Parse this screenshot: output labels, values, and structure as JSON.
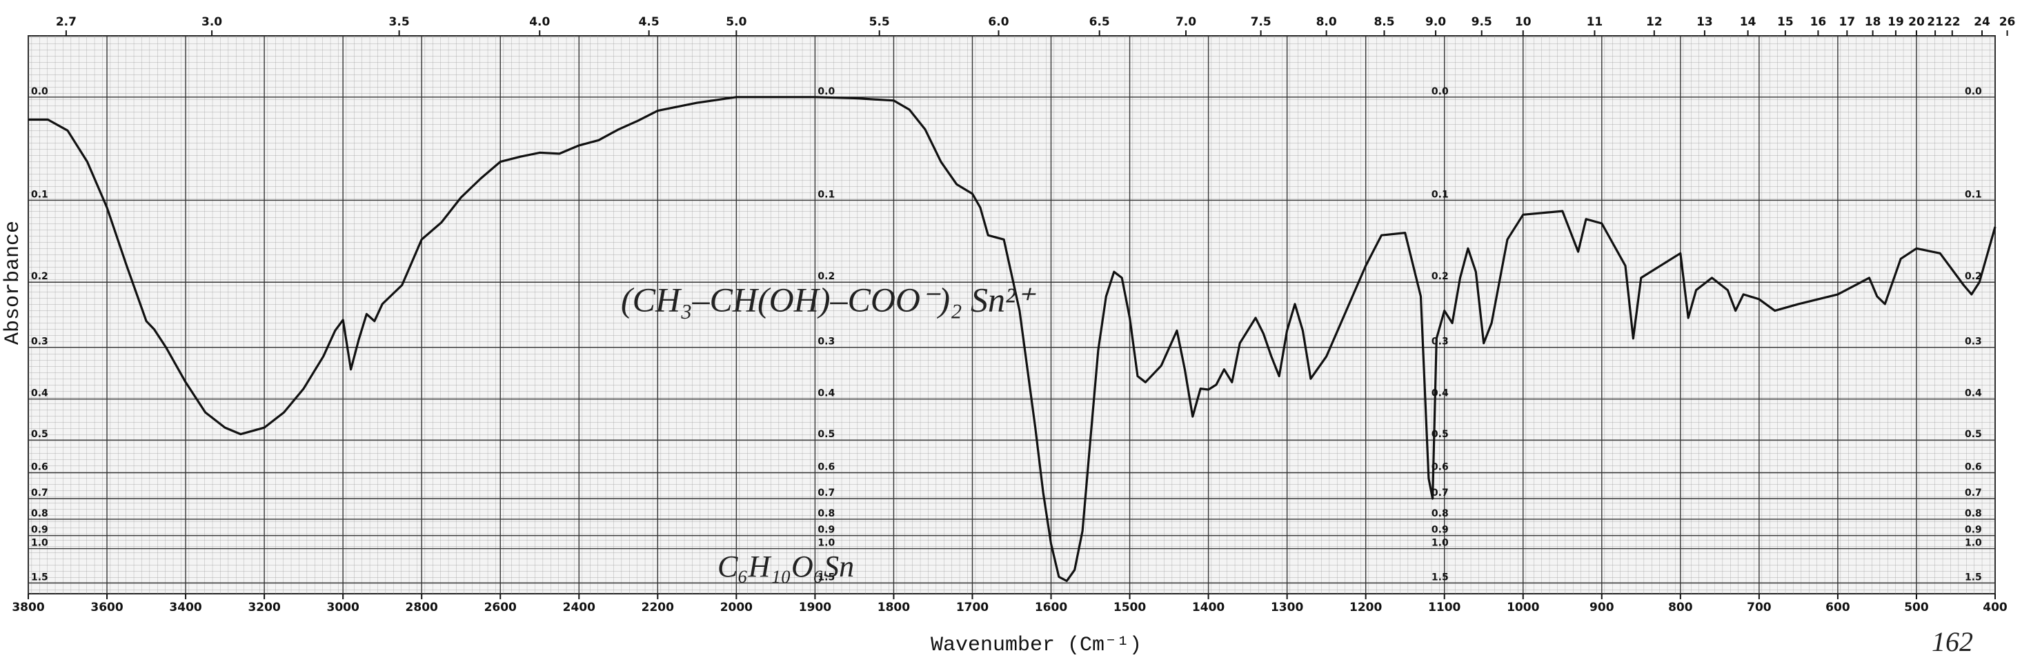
{
  "chart_data": {
    "type": "line",
    "xlabel": "Wavenumber (Cm⁻¹)",
    "ylabel": "Absorbance",
    "x2label": null,
    "annotations": [
      "(CH₃–CH(OH)–COO⁻)₂ Sn²⁺",
      "C₆H₁₀O₆Sn",
      "162"
    ],
    "x": [
      3800,
      3750,
      3700,
      3650,
      3600,
      3550,
      3500,
      3480,
      3450,
      3400,
      3350,
      3300,
      3260,
      3200,
      3150,
      3100,
      3050,
      3020,
      3000,
      2980,
      2960,
      2940,
      2920,
      2900,
      2850,
      2800,
      2750,
      2700,
      2650,
      2600,
      2550,
      2500,
      2450,
      2400,
      2350,
      2300,
      2250,
      2200,
      2100,
      2000,
      1950,
      1900,
      1850,
      1800,
      1780,
      1760,
      1740,
      1720,
      1700,
      1690,
      1680,
      1660,
      1640,
      1620,
      1610,
      1600,
      1590,
      1580,
      1570,
      1560,
      1550,
      1540,
      1530,
      1520,
      1510,
      1500,
      1490,
      1480,
      1460,
      1440,
      1430,
      1420,
      1410,
      1400,
      1390,
      1380,
      1370,
      1360,
      1340,
      1330,
      1320,
      1310,
      1300,
      1290,
      1280,
      1270,
      1250,
      1200,
      1180,
      1150,
      1130,
      1120,
      1115,
      1110,
      1100,
      1090,
      1080,
      1070,
      1060,
      1050,
      1040,
      1020,
      1000,
      950,
      930,
      920,
      900,
      870,
      860,
      850,
      800,
      790,
      780,
      760,
      740,
      730,
      720,
      700,
      680,
      650,
      600,
      560,
      550,
      540,
      520,
      500,
      470,
      440,
      430,
      420,
      400
    ],
    "values": [
      0.02,
      0.02,
      0.03,
      0.06,
      0.108,
      0.178,
      0.257,
      0.27,
      0.3,
      0.365,
      0.43,
      0.467,
      0.484,
      0.467,
      0.43,
      0.378,
      0.316,
      0.272,
      0.255,
      0.34,
      0.287,
      0.246,
      0.257,
      0.231,
      0.204,
      0.145,
      0.125,
      0.097,
      0.077,
      0.06,
      0.055,
      0.051,
      0.052,
      0.044,
      0.039,
      0.029,
      0.021,
      0.012,
      0.005,
      0,
      0,
      0,
      0.001,
      0.003,
      0.011,
      0.029,
      0.06,
      0.083,
      0.093,
      0.108,
      0.14,
      0.145,
      0.241,
      0.467,
      0.674,
      0.96,
      1.36,
      1.45,
      1.24,
      0.87,
      0.5,
      0.305,
      0.22,
      0.186,
      0.194,
      0.252,
      0.353,
      0.365,
      0.333,
      0.272,
      0.34,
      0.44,
      0.378,
      0.38,
      0.37,
      0.34,
      0.365,
      0.293,
      0.252,
      0.277,
      0.316,
      0.353,
      0.272,
      0.231,
      0.272,
      0.358,
      0.316,
      0.178,
      0.14,
      0.137,
      0.22,
      0.62,
      0.7,
      0.285,
      0.241,
      0.26,
      0.194,
      0.156,
      0.186,
      0.293,
      0.26,
      0.145,
      0.116,
      0.112,
      0.16,
      0.121,
      0.126,
      0.178,
      0.285,
      0.194,
      0.162,
      0.252,
      0.211,
      0.194,
      0.211,
      0.241,
      0.217,
      0.224,
      0.241,
      0.231,
      0.217,
      0.194,
      0.22,
      0.231,
      0.169,
      0.156,
      0.162,
      0.204,
      0.217,
      0.2,
      0.13
    ],
    "color": "#111111",
    "xlim": [
      3800,
      400
    ],
    "xticks": [
      3800,
      3600,
      3400,
      3200,
      3000,
      2800,
      2600,
      2400,
      2200,
      2000,
      1900,
      1800,
      1700,
      1600,
      1500,
      1400,
      1300,
      1200,
      1100,
      1000,
      900,
      800,
      700,
      600,
      500,
      400
    ],
    "x2ticks": [
      2.7,
      {
        "value": 3,
        "label": "3.0"
      },
      3.5,
      {
        "value": 4,
        "label": "4.0"
      },
      4.5,
      {
        "value": 5,
        "label": "5.0"
      },
      5.5,
      {
        "value": 6,
        "label": "6.0"
      },
      6.5,
      {
        "value": 7,
        "label": "7.0"
      },
      7.5,
      {
        "value": 8,
        "label": "8.0"
      },
      8.5,
      {
        "value": 9,
        "label": "9.0"
      },
      9.5,
      10,
      11,
      12,
      13,
      14,
      15,
      16,
      17,
      18,
      19,
      20,
      21,
      22,
      24,
      26
    ],
    "ylim": [
      2,
      -0.05
    ],
    "yscale": "absorbance",
    "yticks": [
      {
        "value": 0,
        "label": "0.0"
      },
      0.1,
      0.2,
      0.3,
      0.4,
      0.5,
      0.6,
      0.7,
      0.8,
      0.9,
      {
        "value": 1,
        "label": "1.0"
      },
      1.5
    ],
    "grid": true
  }
}
